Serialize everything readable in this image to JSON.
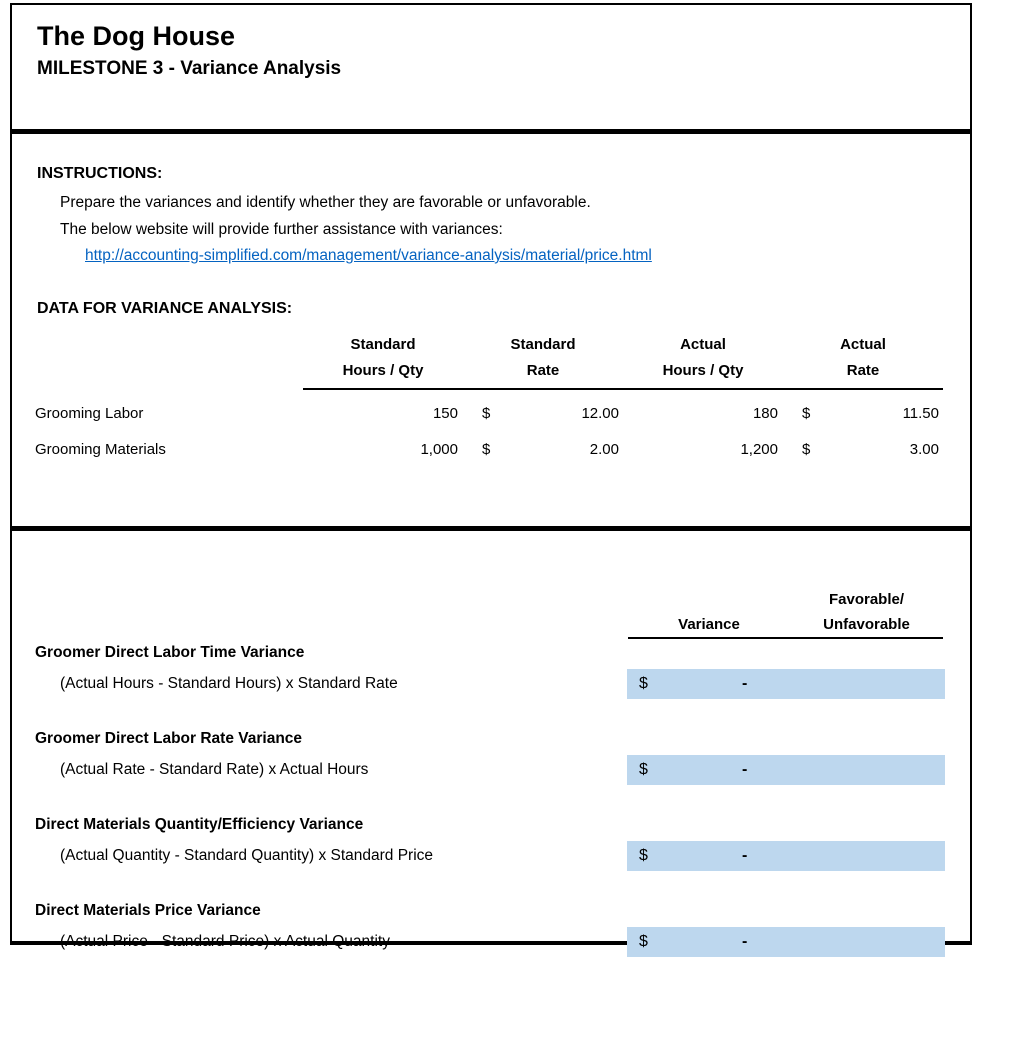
{
  "header": {
    "title": "The Dog House",
    "subtitle": "MILESTONE 3 - Variance Analysis"
  },
  "instructions": {
    "heading": "INSTRUCTIONS:",
    "line1": "Prepare the variances and identify whether they are favorable or unfavorable.",
    "line2": "The below website will provide further assistance with variances:",
    "link_text": "http://accounting-simplified.com/management/variance-analysis/material/price.html"
  },
  "data_section": {
    "heading": "DATA FOR VARIANCE ANALYSIS:",
    "columns": [
      {
        "line1": "Standard",
        "line2": "Hours / Qty"
      },
      {
        "line1": "Standard",
        "line2": "Rate"
      },
      {
        "line1": "Actual",
        "line2": "Hours / Qty"
      },
      {
        "line1": "Actual",
        "line2": "Rate"
      }
    ],
    "rows": [
      {
        "label": "Grooming Labor",
        "standard_qty": "150",
        "standard_rate_currency": "$",
        "standard_rate": "12.00",
        "actual_qty": "180",
        "actual_rate_currency": "$",
        "actual_rate": "11.50"
      },
      {
        "label": "Grooming Materials",
        "standard_qty": "1,000",
        "standard_rate_currency": "$",
        "standard_rate": "2.00",
        "actual_qty": "1,200",
        "actual_rate_currency": "$",
        "actual_rate": "3.00"
      }
    ]
  },
  "variance_section": {
    "variance_header": "Variance",
    "favorable_header_line1": "Favorable/",
    "favorable_header_line2": "Unfavorable",
    "items": [
      {
        "title": "Groomer Direct Labor Time Variance",
        "formula": "(Actual Hours - Standard Hours) x Standard Rate",
        "currency": "$",
        "value": "-"
      },
      {
        "title": "Groomer Direct Labor Rate Variance",
        "formula": "(Actual Rate - Standard Rate) x Actual Hours",
        "currency": "$",
        "value": "-"
      },
      {
        "title": "Direct Materials Quantity/Efficiency Variance",
        "formula": "(Actual Quantity - Standard Quantity) x Standard Price",
        "currency": "$",
        "value": "-"
      },
      {
        "title": "Direct Materials Price Variance",
        "formula": "(Actual Price - Standard Price) x Actual Quantity",
        "currency": "$",
        "value": "-"
      }
    ]
  },
  "colors": {
    "input_cell_fill": "#BDD7EE",
    "link_blue": "#0563C1",
    "border_black": "#000000"
  }
}
